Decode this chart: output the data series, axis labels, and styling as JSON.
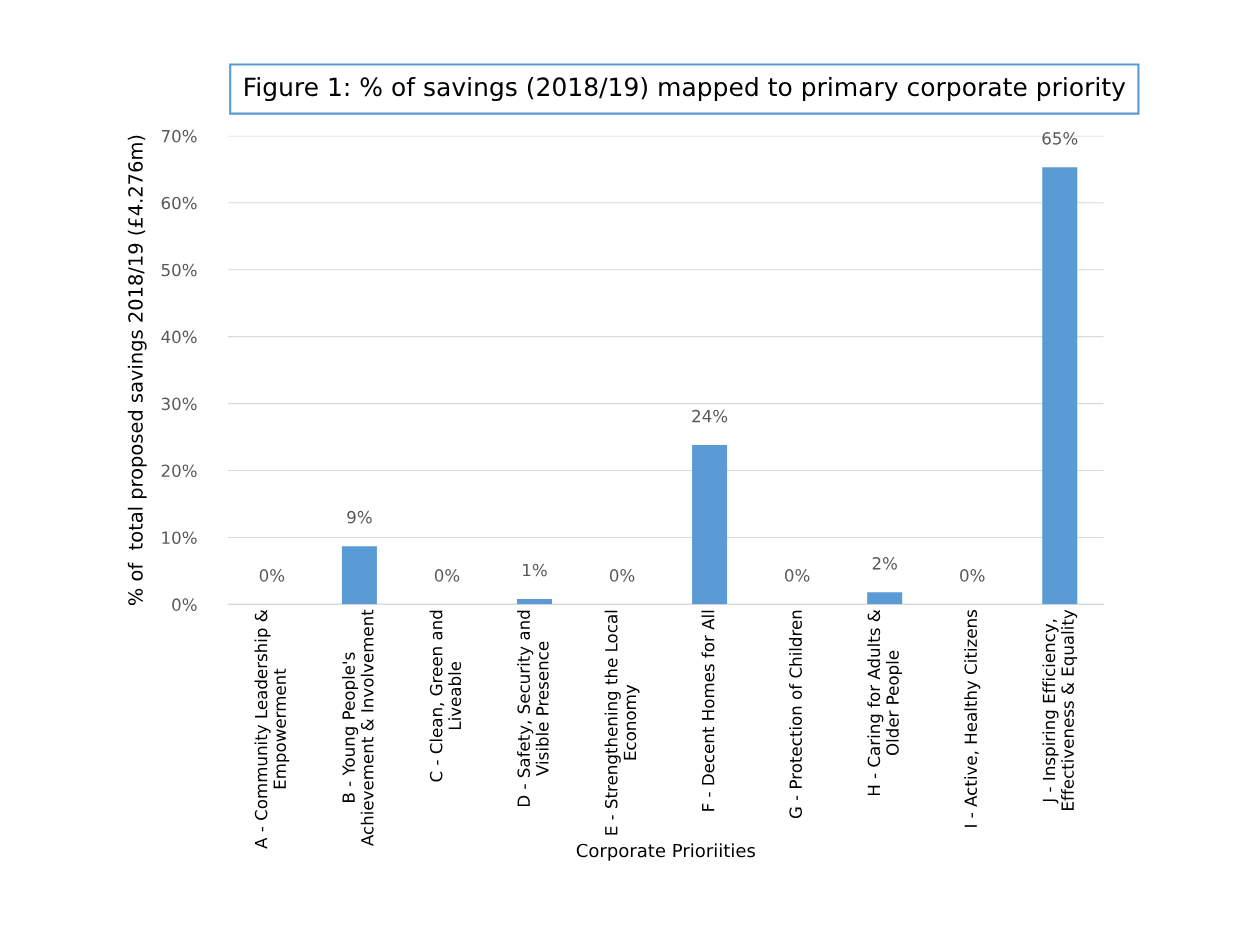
{
  "chart_data": {
    "type": "bar",
    "title": "Figure 1: % of savings (2018/19) mapped to primary corporate priority",
    "xlabel": "Corporate Prioriities",
    "ylabel": "% of  total proposed savings 2018/19 (£4.276m)",
    "categories": [
      "A - Community Leadership & Empowerment",
      "B - Young People's Achievement & Involvement",
      "C - Clean, Green and Liveable",
      "D - Safety, Security and Visible Presence",
      "E - Strengthening the Local Economy",
      "F - Decent Homes for All",
      "G - Protection of Children",
      "H - Caring for Adults & Older People",
      "I - Active, Healthy Citizens",
      "J - Inspiring Efficiency, Effectiveness & Equality"
    ],
    "values": [
      0,
      8.7,
      0,
      0.8,
      0,
      23.8,
      0,
      1.8,
      0,
      65.3
    ],
    "value_labels": [
      "0%",
      "9%",
      "0%",
      "1%",
      "0%",
      "24%",
      "0%",
      "2%",
      "0%",
      "65%"
    ],
    "color": "#5b9bd5",
    "ylim": [
      0,
      70
    ],
    "yticks": [
      {
        "value": 0,
        "label": "0%"
      },
      {
        "value": 10,
        "label": "10%"
      },
      {
        "value": 20,
        "label": "20%"
      },
      {
        "value": 30,
        "label": "30%"
      },
      {
        "value": 40,
        "label": "40%"
      },
      {
        "value": 50,
        "label": "50%"
      },
      {
        "value": 60,
        "label": "60%"
      },
      {
        "value": 70,
        "label": "70%"
      }
    ],
    "grid": "y"
  }
}
